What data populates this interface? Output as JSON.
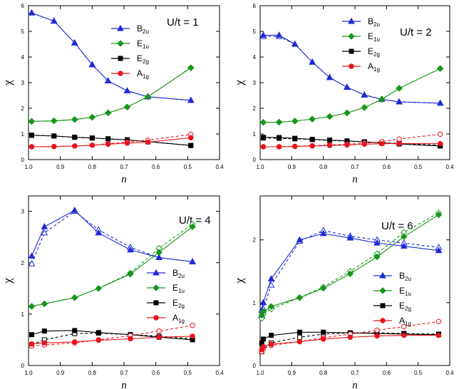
{
  "chart_data": [
    {
      "type": "line",
      "panel_label": "U/t = 1",
      "xlabel": "n",
      "ylabel": "χ",
      "xlim": [
        1.0,
        0.4
      ],
      "ylim": [
        0,
        6
      ],
      "xticks": [
        "1.0",
        "0.9",
        "0.8",
        "0.7",
        "0.6",
        "0.5",
        "0.4"
      ],
      "yticks": [
        "0",
        "1",
        "2",
        "3",
        "4",
        "5",
        "6"
      ],
      "legend_position": "top-right",
      "series": [
        {
          "name": "B",
          "sub": "2u",
          "color": "#1f2bd6",
          "marker": "triangle",
          "x": [
            0.99,
            0.92,
            0.855,
            0.8,
            0.75,
            0.69,
            0.625,
            0.49
          ],
          "solid": [
            5.72,
            5.4,
            4.55,
            3.7,
            3.07,
            2.68,
            2.45,
            2.31
          ],
          "dashed": [
            5.72,
            5.4,
            4.55,
            3.7,
            3.07,
            2.68,
            2.45,
            2.31
          ]
        },
        {
          "name": "E",
          "sub": "1u",
          "color": "#17961a",
          "marker": "diamond",
          "x": [
            0.99,
            0.92,
            0.855,
            0.8,
            0.75,
            0.69,
            0.625,
            0.49
          ],
          "solid": [
            1.49,
            1.51,
            1.56,
            1.65,
            1.82,
            2.05,
            2.45,
            3.58
          ],
          "dashed": [
            1.49,
            1.51,
            1.56,
            1.65,
            1.82,
            2.05,
            2.45,
            3.58
          ]
        },
        {
          "name": "E",
          "sub": "2g",
          "color": "#000000",
          "marker": "square",
          "x": [
            0.99,
            0.92,
            0.855,
            0.8,
            0.75,
            0.69,
            0.625,
            0.49
          ],
          "solid": [
            0.95,
            0.92,
            0.87,
            0.84,
            0.81,
            0.77,
            0.7,
            0.55
          ],
          "dashed": [
            0.95,
            0.92,
            0.87,
            0.84,
            0.81,
            0.77,
            0.7,
            0.55
          ]
        },
        {
          "name": "A",
          "sub": "1g",
          "color": "#e8141c",
          "marker": "circle",
          "x": [
            0.99,
            0.92,
            0.855,
            0.8,
            0.75,
            0.69,
            0.625,
            0.49
          ],
          "solid": [
            0.5,
            0.51,
            0.53,
            0.56,
            0.6,
            0.64,
            0.68,
            0.85
          ],
          "dashed": [
            0.5,
            0.51,
            0.53,
            0.56,
            0.62,
            0.68,
            0.76,
            0.98
          ]
        }
      ]
    },
    {
      "type": "line",
      "panel_label": "U/t = 2",
      "xlabel": "n",
      "ylabel": "χ",
      "xlim": [
        1.0,
        0.4
      ],
      "ylim": [
        0,
        6
      ],
      "xticks": [
        "1.0",
        "0.9",
        "0.8",
        "0.7",
        "0.6",
        "0.5",
        "0.4"
      ],
      "yticks": [
        "0",
        "1",
        "2",
        "3",
        "4",
        "5",
        "6"
      ],
      "legend_position": "top-right",
      "series": [
        {
          "name": "B",
          "sub": "2u",
          "color": "#1f2bd6",
          "marker": "triangle",
          "x": [
            0.99,
            0.94,
            0.89,
            0.835,
            0.78,
            0.725,
            0.67,
            0.615,
            0.56,
            0.43
          ],
          "solid": [
            4.85,
            4.85,
            4.5,
            3.8,
            3.2,
            2.82,
            2.52,
            2.35,
            2.25,
            2.2
          ],
          "dashed": [
            4.8,
            4.8,
            4.5,
            3.8,
            3.2,
            2.82,
            2.52,
            2.35,
            2.25,
            2.2
          ]
        },
        {
          "name": "E",
          "sub": "1u",
          "color": "#17961a",
          "marker": "diamond",
          "x": [
            0.99,
            0.94,
            0.89,
            0.835,
            0.78,
            0.725,
            0.67,
            0.615,
            0.56,
            0.43
          ],
          "solid": [
            1.45,
            1.46,
            1.5,
            1.58,
            1.68,
            1.82,
            2.03,
            2.35,
            2.78,
            3.55
          ],
          "dashed": [
            1.45,
            1.46,
            1.5,
            1.58,
            1.68,
            1.82,
            2.03,
            2.35,
            2.78,
            3.55
          ]
        },
        {
          "name": "E",
          "sub": "2g",
          "color": "#000000",
          "marker": "square",
          "x": [
            0.99,
            0.94,
            0.89,
            0.835,
            0.78,
            0.725,
            0.67,
            0.615,
            0.56,
            0.43
          ],
          "solid": [
            0.87,
            0.86,
            0.83,
            0.79,
            0.76,
            0.73,
            0.69,
            0.65,
            0.61,
            0.53
          ],
          "dashed": [
            0.84,
            0.83,
            0.81,
            0.78,
            0.75,
            0.72,
            0.69,
            0.66,
            0.63,
            0.56
          ]
        },
        {
          "name": "A",
          "sub": "1g",
          "color": "#e8141c",
          "marker": "circle",
          "x": [
            0.99,
            0.94,
            0.89,
            0.835,
            0.78,
            0.725,
            0.67,
            0.615,
            0.56,
            0.43
          ],
          "solid": [
            0.5,
            0.5,
            0.51,
            0.53,
            0.55,
            0.57,
            0.6,
            0.62,
            0.63,
            0.62
          ],
          "dashed": [
            0.5,
            0.5,
            0.52,
            0.54,
            0.57,
            0.6,
            0.64,
            0.7,
            0.8,
            0.99
          ]
        }
      ]
    },
    {
      "type": "line",
      "panel_label": "U/t = 4",
      "xlabel": "n",
      "ylabel": "χ",
      "xlim": [
        1.0,
        0.4
      ],
      "ylim": [
        0,
        3.3
      ],
      "xticks": [
        "1.0",
        "0.9",
        "0.8",
        "0.7",
        "0.6",
        "0.5",
        "0.4"
      ],
      "yticks": [
        "0",
        "1",
        "2",
        "3"
      ],
      "legend_position": "bottom-right",
      "series": [
        {
          "name": "B",
          "sub": "2u",
          "color": "#1f2bd6",
          "marker": "triangle",
          "x": [
            0.99,
            0.95,
            0.855,
            0.78,
            0.68,
            0.59,
            0.485
          ],
          "solid": [
            2.13,
            2.7,
            3.02,
            2.58,
            2.25,
            2.1,
            2.02
          ],
          "dashed": [
            1.98,
            2.58,
            3.0,
            2.64,
            2.3,
            2.1,
            2.02
          ]
        },
        {
          "name": "E",
          "sub": "1u",
          "color": "#17961a",
          "marker": "diamond",
          "x": [
            0.99,
            0.95,
            0.855,
            0.78,
            0.68,
            0.59,
            0.485
          ],
          "solid": [
            1.15,
            1.2,
            1.32,
            1.5,
            1.78,
            2.2,
            2.7
          ],
          "dashed": [
            1.15,
            1.2,
            1.32,
            1.5,
            1.8,
            2.28,
            2.75
          ]
        },
        {
          "name": "E",
          "sub": "2g",
          "color": "#000000",
          "marker": "square",
          "x": [
            0.99,
            0.95,
            0.855,
            0.78,
            0.68,
            0.59,
            0.485
          ],
          "solid": [
            0.6,
            0.67,
            0.68,
            0.64,
            0.6,
            0.55,
            0.5
          ],
          "dashed": [
            0.4,
            0.5,
            0.62,
            0.63,
            0.6,
            0.57,
            0.52
          ]
        },
        {
          "name": "A",
          "sub": "1g",
          "color": "#e8141c",
          "marker": "circle",
          "x": [
            0.99,
            0.95,
            0.855,
            0.78,
            0.68,
            0.59,
            0.485
          ],
          "solid": [
            0.42,
            0.44,
            0.46,
            0.49,
            0.52,
            0.55,
            0.57
          ],
          "dashed": [
            0.38,
            0.4,
            0.44,
            0.5,
            0.58,
            0.67,
            0.78
          ]
        }
      ]
    },
    {
      "type": "line",
      "panel_label": "U/t = 6",
      "xlabel": "n",
      "ylabel": "χ",
      "xlim": [
        1.0,
        0.4
      ],
      "ylim": [
        0,
        2.7
      ],
      "xticks": [
        "1.0",
        "0.9",
        "0.8",
        "0.7",
        "0.6",
        "0.5",
        "0.4"
      ],
      "yticks": [
        "0",
        "1",
        "2"
      ],
      "legend_position": "right",
      "series": [
        {
          "name": "B",
          "sub": "2u",
          "color": "#1f2bd6",
          "marker": "triangle",
          "x": [
            0.995,
            0.99,
            0.965,
            0.875,
            0.8,
            0.715,
            0.63,
            0.545,
            0.435
          ],
          "solid": [
            0.88,
            1.0,
            1.38,
            2.0,
            2.1,
            2.03,
            1.95,
            1.9,
            1.83
          ],
          "dashed": [
            0.8,
            0.9,
            1.28,
            1.98,
            2.15,
            2.06,
            2.0,
            1.95,
            1.88
          ]
        },
        {
          "name": "E",
          "sub": "1u",
          "color": "#17961a",
          "marker": "diamond",
          "x": [
            0.995,
            0.99,
            0.965,
            0.875,
            0.8,
            0.715,
            0.63,
            0.545,
            0.435
          ],
          "solid": [
            0.8,
            0.86,
            0.94,
            1.08,
            1.23,
            1.46,
            1.73,
            2.05,
            2.4
          ],
          "dashed": [
            0.75,
            0.82,
            0.9,
            1.08,
            1.25,
            1.5,
            1.78,
            2.12,
            2.43
          ]
        },
        {
          "name": "E",
          "sub": "2g",
          "color": "#000000",
          "marker": "square",
          "x": [
            0.995,
            0.99,
            0.965,
            0.875,
            0.8,
            0.715,
            0.63,
            0.545,
            0.435
          ],
          "solid": [
            0.35,
            0.42,
            0.48,
            0.53,
            0.53,
            0.52,
            0.51,
            0.5,
            0.49
          ],
          "dashed": [
            0.22,
            0.28,
            0.36,
            0.45,
            0.5,
            0.52,
            0.52,
            0.51,
            0.5
          ]
        },
        {
          "name": "A",
          "sub": "1g",
          "color": "#e8141c",
          "marker": "circle",
          "x": [
            0.995,
            0.99,
            0.965,
            0.875,
            0.8,
            0.715,
            0.63,
            0.545,
            0.435
          ],
          "solid": [
            0.25,
            0.3,
            0.34,
            0.38,
            0.42,
            0.45,
            0.47,
            0.48,
            0.48
          ],
          "dashed": [
            0.22,
            0.27,
            0.32,
            0.38,
            0.44,
            0.5,
            0.56,
            0.62,
            0.7
          ]
        }
      ]
    }
  ]
}
